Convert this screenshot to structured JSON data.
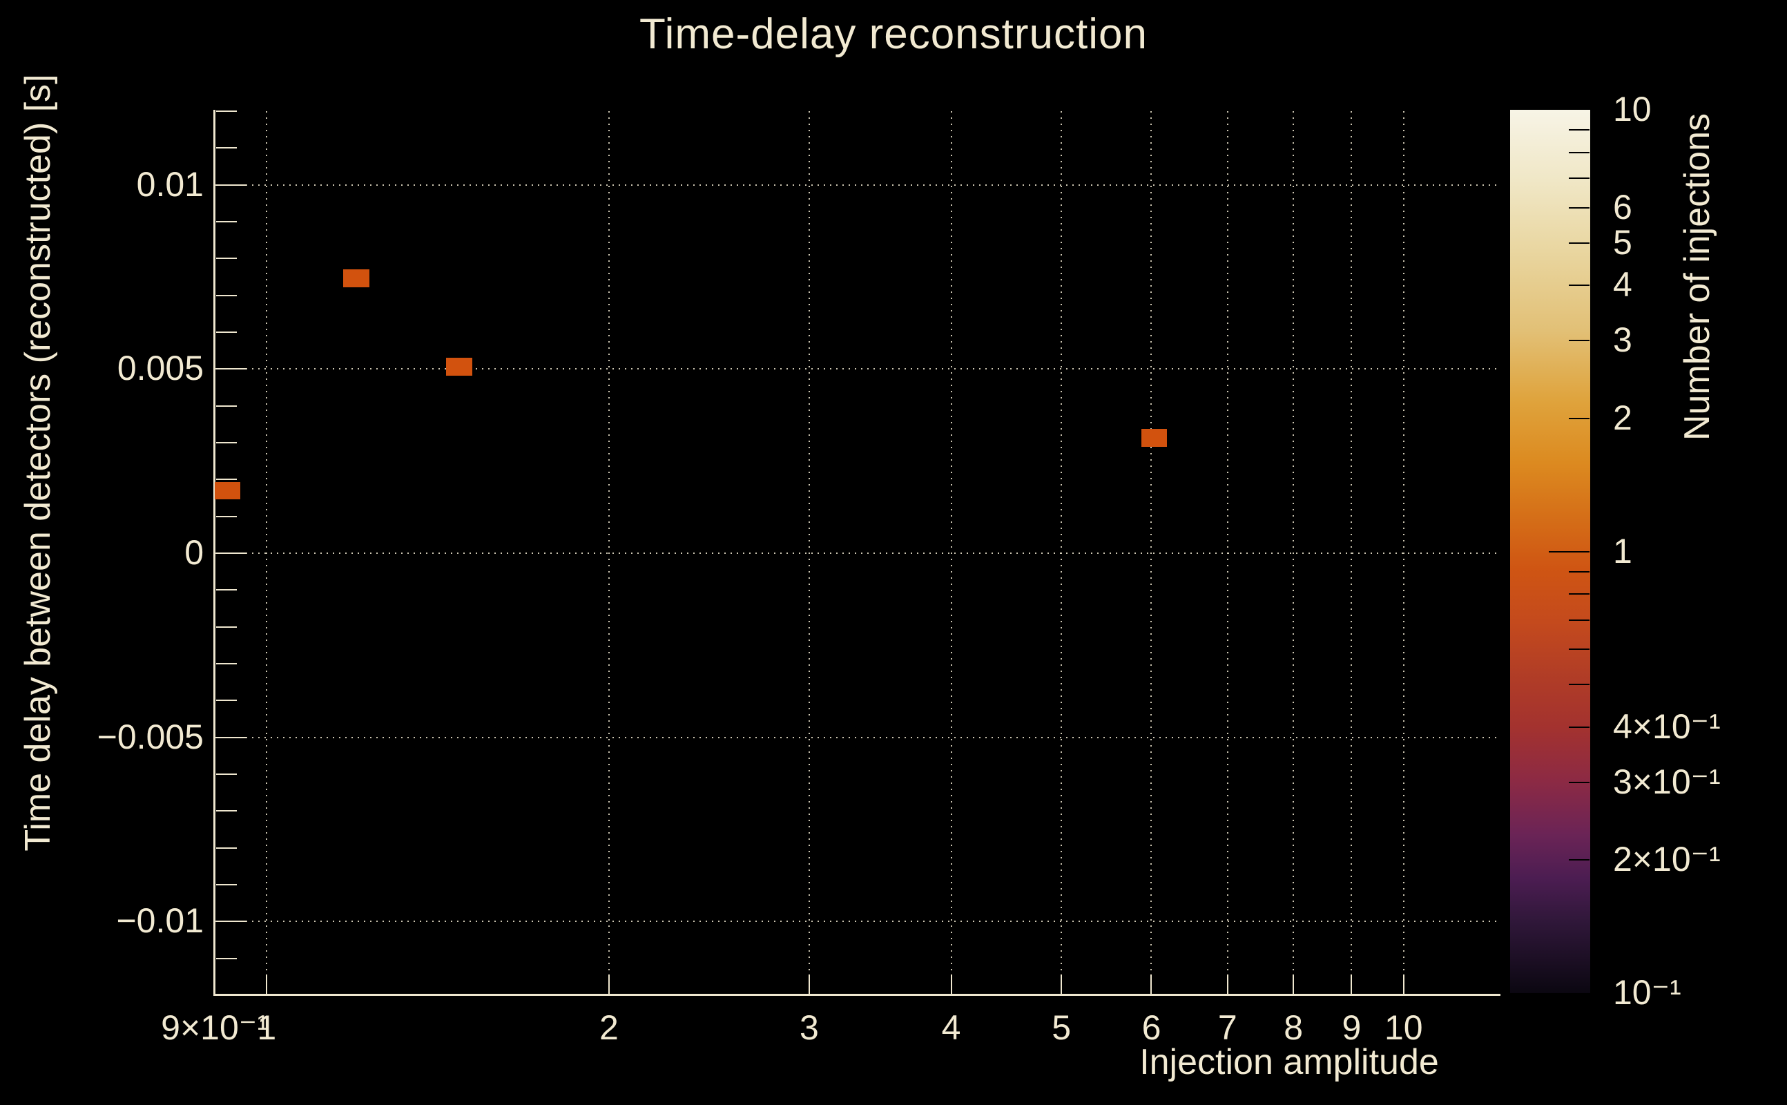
{
  "title": "Time-delay reconstruction",
  "colors": {
    "background": "#000000",
    "foreground": "#f2ead2",
    "grid": "#efe7cf",
    "point": "#d2520e"
  },
  "chart_data": {
    "type": "heatmap",
    "title": "Time-delay reconstruction",
    "grid": "dotted, on major ticks",
    "x_axis": {
      "title": "Injection amplitude",
      "scale": "log",
      "min": 0.9,
      "max": 12.15,
      "ticks": [
        {
          "value": 0.9,
          "label": "9×10⁻¹"
        },
        {
          "value": 1,
          "label": "1"
        },
        {
          "value": 2,
          "label": "2"
        },
        {
          "value": 3,
          "label": "3"
        },
        {
          "value": 4,
          "label": "4"
        },
        {
          "value": 5,
          "label": "5"
        },
        {
          "value": 6,
          "label": "6"
        },
        {
          "value": 7,
          "label": "7"
        },
        {
          "value": 8,
          "label": "8"
        },
        {
          "value": 9,
          "label": "9"
        },
        {
          "value": 10,
          "label": "10"
        }
      ],
      "grid_values": [
        1,
        2,
        3,
        4,
        5,
        6,
        7,
        8,
        9,
        10
      ]
    },
    "y_axis": {
      "title": "Time delay between detectors (reconstructed) [s]",
      "scale": "linear",
      "min": -0.012,
      "max": 0.012,
      "minor_tick_step": 0.001,
      "ticks": [
        {
          "value": 0.01,
          "label": "0.01"
        },
        {
          "value": 0.005,
          "label": "0.005"
        },
        {
          "value": 0,
          "label": "0"
        },
        {
          "value": -0.005,
          "label": "−0.005"
        },
        {
          "value": -0.01,
          "label": "−0.01"
        }
      ],
      "grid_values": [
        0.01,
        0.005,
        0,
        -0.005,
        -0.01
      ]
    },
    "colorbar": {
      "title": "Number of injections",
      "scale": "log",
      "min": 0.1,
      "max": 10,
      "labels": [
        {
          "value": 10,
          "label": "10"
        },
        {
          "value": 6,
          "label": "6"
        },
        {
          "value": 5,
          "label": "5"
        },
        {
          "value": 4,
          "label": "4"
        },
        {
          "value": 3,
          "label": "3"
        },
        {
          "value": 2,
          "label": "2"
        },
        {
          "value": 1,
          "label": "1"
        },
        {
          "value": 0.4,
          "label": "4×10⁻¹"
        },
        {
          "value": 0.3,
          "label": "3×10⁻¹"
        },
        {
          "value": 0.2,
          "label": "2×10⁻¹"
        },
        {
          "value": 0.1,
          "label": "10⁻¹"
        }
      ],
      "minor_ticks": [
        9,
        8,
        7,
        6,
        5,
        4,
        3,
        2,
        0.9,
        0.8,
        0.7,
        0.6,
        0.5,
        0.4,
        0.3,
        0.2
      ],
      "major_ticks": [
        1
      ],
      "gradient": [
        {
          "pos": 0.0,
          "color": "#f7f4e6"
        },
        {
          "pos": 0.08,
          "color": "#f0e7c6"
        },
        {
          "pos": 0.16,
          "color": "#e9d6a0"
        },
        {
          "pos": 0.25,
          "color": "#e2c076"
        },
        {
          "pos": 0.33,
          "color": "#dfa33c"
        },
        {
          "pos": 0.4,
          "color": "#dc8a20"
        },
        {
          "pos": 0.46,
          "color": "#d56f18"
        },
        {
          "pos": 0.52,
          "color": "#cf5513"
        },
        {
          "pos": 0.58,
          "color": "#c44a1d"
        },
        {
          "pos": 0.64,
          "color": "#b13d26"
        },
        {
          "pos": 0.7,
          "color": "#a3322f"
        },
        {
          "pos": 0.76,
          "color": "#8c2a44"
        },
        {
          "pos": 0.82,
          "color": "#6b2456"
        },
        {
          "pos": 0.87,
          "color": "#4c1d52"
        },
        {
          "pos": 0.92,
          "color": "#2f1739"
        },
        {
          "pos": 1.0,
          "color": "#0b0711"
        }
      ]
    },
    "points": [
      {
        "x": 0.92,
        "y": 0.0017,
        "x_range": [
          0.9,
          0.948
        ],
        "y_range": [
          0.00147,
          0.00194
        ],
        "count": 1
      },
      {
        "x": 1.2,
        "y": 0.00746,
        "x_range": [
          1.168,
          1.231
        ],
        "y_range": [
          0.00722,
          0.00771
        ],
        "count": 1
      },
      {
        "x": 1.48,
        "y": 0.00505,
        "x_range": [
          1.437,
          1.516
        ],
        "y_range": [
          0.00481,
          0.0053
        ],
        "count": 1
      },
      {
        "x": 6.03,
        "y": 0.00313,
        "x_range": [
          5.88,
          6.19
        ],
        "y_range": [
          0.00289,
          0.00338
        ],
        "count": 1
      }
    ]
  }
}
